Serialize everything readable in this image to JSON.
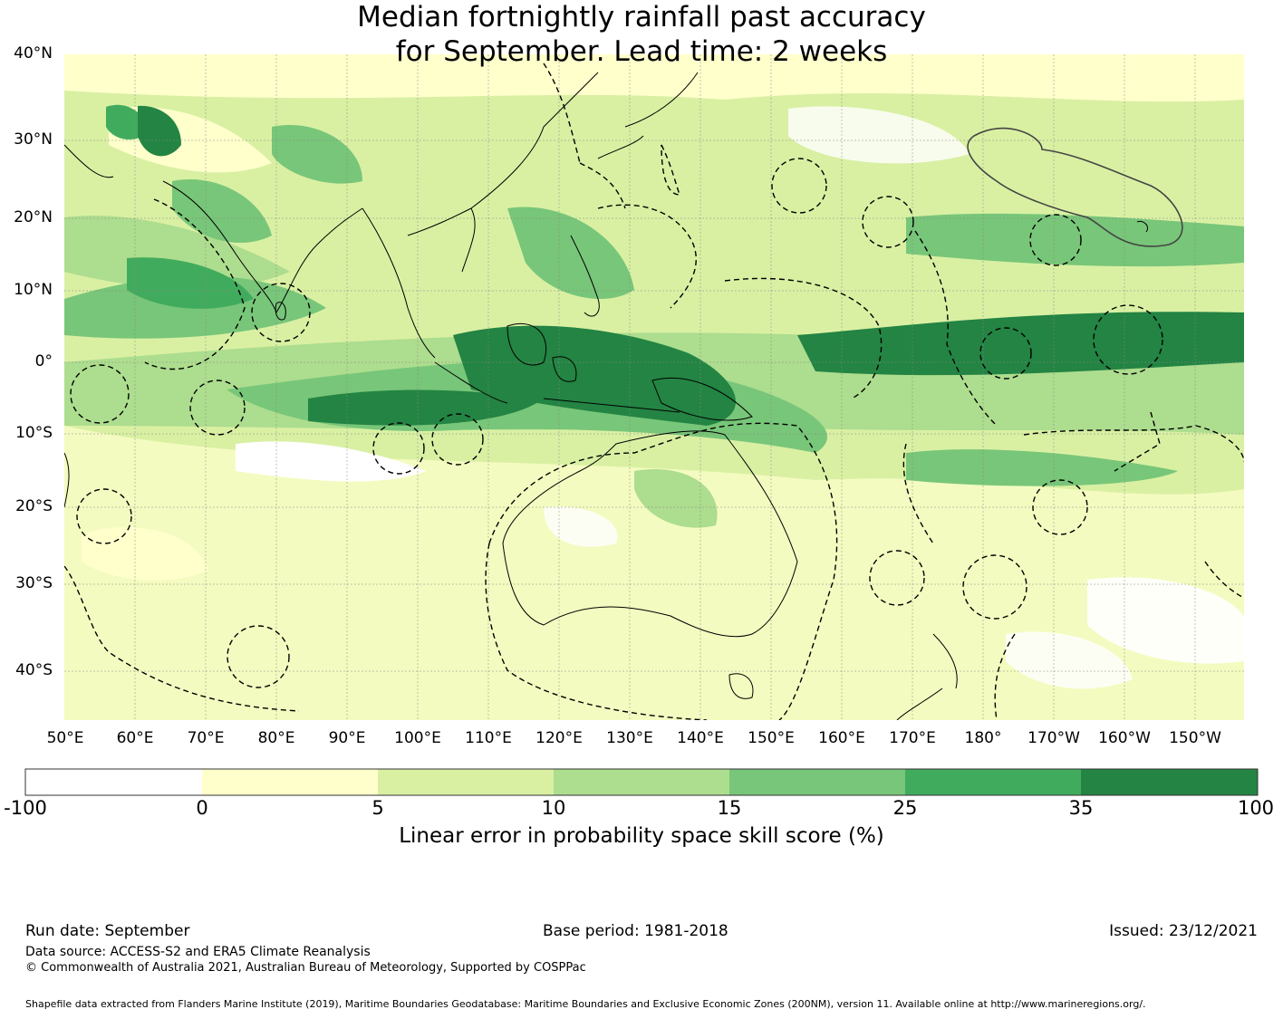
{
  "title": {
    "line1": "Median fortnightly rainfall past accuracy",
    "line2": "for September. Lead time: 2 weeks"
  },
  "axes": {
    "lat_labels": [
      "40°N",
      "30°N",
      "20°N",
      "10°N",
      "0°",
      "10°S",
      "20°S",
      "30°S",
      "40°S"
    ],
    "lon_labels": [
      "50°E",
      "60°E",
      "70°E",
      "80°E",
      "90°E",
      "100°E",
      "110°E",
      "120°E",
      "130°E",
      "140°E",
      "150°E",
      "160°E",
      "170°E",
      "180°",
      "170°W",
      "160°W",
      "150°W"
    ]
  },
  "colorbar": {
    "label": "Linear error in probability space skill score (%)",
    "ticks": [
      "-100",
      "0",
      "5",
      "10",
      "15",
      "25",
      "35",
      "100"
    ],
    "colors": [
      "#ffffff",
      "#ffffcc",
      "#d9f0a3",
      "#addd8e",
      "#78c679",
      "#41ab5d",
      "#238443"
    ]
  },
  "footer": {
    "run_date": "Run date: September",
    "base_period": "Base period: 1981-2018",
    "issued": "Issued: 23/12/2021",
    "data_source": "Data source: ACCESS-S2 and ERA5 Climate Reanalysis",
    "copyright": "© Commonwealth of Australia 2021, Australian Bureau of Meteorology, Supported by COSPPac",
    "shapefile": "Shapefile data extracted from Flanders Marine Institute (2019), Maritime Boundaries Geodatabase: Maritime Boundaries and Exclusive Economic Zones (200NM), version 11. Available online at http://www.marineregions.org/."
  },
  "map_layers": {
    "coastline_icon": "coastline-icon",
    "eez_icon": "eez-boundary-icon"
  }
}
